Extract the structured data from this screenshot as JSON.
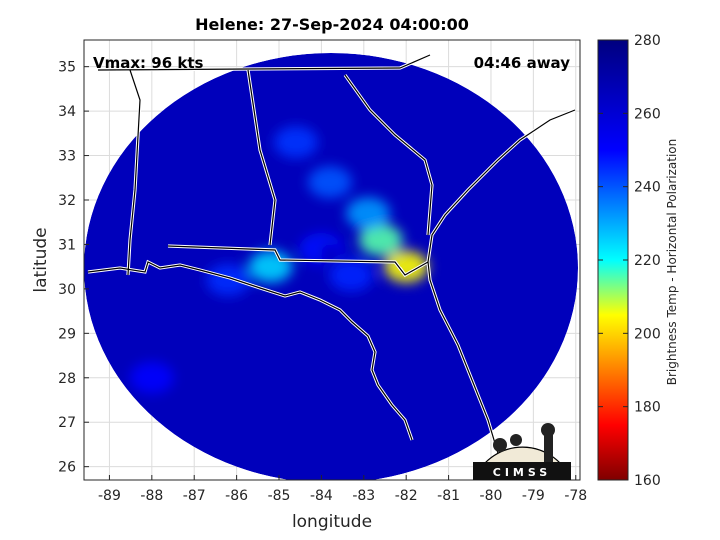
{
  "chart_data": {
    "type": "heatmap",
    "title": "Helene: 27-Sep-2024 04:00:00",
    "xlabel": "longitude",
    "ylabel": "latitude",
    "xlim": [
      -89.6,
      -77.9
    ],
    "ylim": [
      25.7,
      35.6
    ],
    "x_ticks": [
      -89,
      -88,
      -87,
      -86,
      -85,
      -84,
      -83,
      -82,
      -81,
      -80,
      -79,
      -78
    ],
    "y_ticks": [
      26,
      27,
      28,
      29,
      30,
      31,
      32,
      33,
      34,
      35
    ],
    "grid": true,
    "colorbar": {
      "label": "Brightness Temp - Horizontal Polarization",
      "range": [
        160,
        280
      ],
      "ticks": [
        160,
        180,
        200,
        220,
        240,
        260,
        280
      ],
      "colors": [
        "#7f0000",
        "#ff0000",
        "#ffff00",
        "#00ffff",
        "#0000ff",
        "#00007f"
      ]
    },
    "annotations": {
      "vmax": "Vmax: 96 kts",
      "time_away": "04:46 away"
    },
    "storm_center": {
      "lon": -83.8,
      "lat": 30.8
    },
    "swath_center": {
      "lon": -83.7,
      "lat": 30.3
    },
    "warm_features": [
      {
        "lon": -84.0,
        "lat": 30.9,
        "bt": 248
      },
      {
        "lon": -83.3,
        "lat": 30.3,
        "bt": 246
      },
      {
        "lon": -82.6,
        "lat": 31.1,
        "bt": 215
      },
      {
        "lon": -82.0,
        "lat": 30.5,
        "bt": 205
      },
      {
        "lon": -82.9,
        "lat": 31.7,
        "bt": 232
      },
      {
        "lon": -83.8,
        "lat": 32.4,
        "bt": 240
      },
      {
        "lon": -84.6,
        "lat": 33.3,
        "bt": 244
      },
      {
        "lon": -88.0,
        "lat": 28.0,
        "bt": 250
      },
      {
        "lon": -85.2,
        "lat": 30.5,
        "bt": 225
      },
      {
        "lon": -86.2,
        "lat": 30.2,
        "bt": 245
      }
    ],
    "background_bt": 266
  },
  "logo_text": "CIMSS"
}
